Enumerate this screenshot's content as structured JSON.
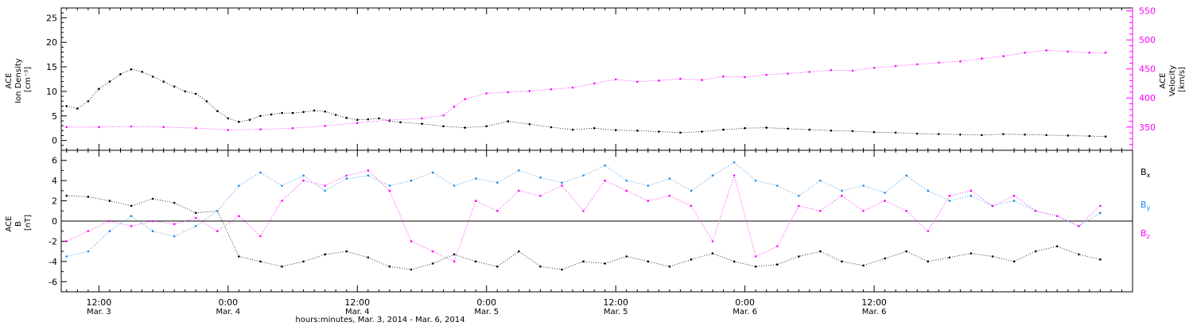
{
  "chart_data": [
    {
      "type": "scatter",
      "panel": "ion-density-velocity",
      "ylabel_lines": [
        "ACE",
        "Ion Density",
        "[cm⁻³]"
      ],
      "ylim": [
        -2,
        27
      ],
      "yticks": [
        0,
        5,
        10,
        15,
        20,
        25
      ],
      "y2label_lines": [
        "ACE",
        "Velocity",
        "[km/s]"
      ],
      "y2lim": [
        310,
        555
      ],
      "y2ticks": [
        350,
        400,
        450,
        500,
        550
      ],
      "series": [
        {
          "axis": "left",
          "color": "#000000",
          "points": [
            [
              9.0,
              7.0
            ],
            [
              10.0,
              6.5
            ],
            [
              11.0,
              8.0
            ],
            [
              12.0,
              10.5
            ],
            [
              13.0,
              12.0
            ],
            [
              14.0,
              13.5
            ],
            [
              15.0,
              14.5
            ],
            [
              16.0,
              14.0
            ],
            [
              17.0,
              13.0
            ],
            [
              18.0,
              12.0
            ],
            [
              19.0,
              11.0
            ],
            [
              20.0,
              10.0
            ],
            [
              21.0,
              9.5
            ],
            [
              22.0,
              8.0
            ],
            [
              23.0,
              6.0
            ],
            [
              24.0,
              4.5
            ],
            [
              25.0,
              3.8
            ],
            [
              26.0,
              4.2
            ],
            [
              27.0,
              5.0
            ],
            [
              28.0,
              5.3
            ],
            [
              29.0,
              5.6
            ],
            [
              30.0,
              5.6
            ],
            [
              31.0,
              5.8
            ],
            [
              32.0,
              6.1
            ],
            [
              33.0,
              5.9
            ],
            [
              34.0,
              5.2
            ],
            [
              35.0,
              4.6
            ],
            [
              36.0,
              4.2
            ],
            [
              37.0,
              4.3
            ],
            [
              38.0,
              4.5
            ],
            [
              39.0,
              4.0
            ],
            [
              40.0,
              3.7
            ],
            [
              42.0,
              3.4
            ],
            [
              44.0,
              2.9
            ],
            [
              46.0,
              2.6
            ],
            [
              48.0,
              2.9
            ],
            [
              50.0,
              3.9
            ],
            [
              52.0,
              3.3
            ],
            [
              54.0,
              2.7
            ],
            [
              56.0,
              2.2
            ],
            [
              58.0,
              2.5
            ],
            [
              60.0,
              2.1
            ],
            [
              62.0,
              2.0
            ],
            [
              64.0,
              1.8
            ],
            [
              66.0,
              1.6
            ],
            [
              68.0,
              1.8
            ],
            [
              70.0,
              2.2
            ],
            [
              72.0,
              2.5
            ],
            [
              74.0,
              2.6
            ],
            [
              76.0,
              2.4
            ],
            [
              78.0,
              2.2
            ],
            [
              80.0,
              2.0
            ],
            [
              82.0,
              1.9
            ],
            [
              84.0,
              1.7
            ],
            [
              86.0,
              1.6
            ],
            [
              88.0,
              1.4
            ],
            [
              90.0,
              1.3
            ],
            [
              92.0,
              1.2
            ],
            [
              94.0,
              1.1
            ],
            [
              96.0,
              1.3
            ],
            [
              98.0,
              1.2
            ],
            [
              100.0,
              1.1
            ],
            [
              102.0,
              1.0
            ],
            [
              104.0,
              0.9
            ],
            [
              105.5,
              0.8
            ]
          ]
        },
        {
          "axis": "right",
          "color": "#ff00ff",
          "points": [
            [
              9.0,
              350
            ],
            [
              12.0,
              350
            ],
            [
              15.0,
              351
            ],
            [
              18.0,
              350
            ],
            [
              21.0,
              348
            ],
            [
              24.0,
              345
            ],
            [
              27.0,
              346
            ],
            [
              30.0,
              348
            ],
            [
              33.0,
              352
            ],
            [
              36.0,
              357
            ],
            [
              39.0,
              362
            ],
            [
              42.0,
              365
            ],
            [
              44.0,
              370
            ],
            [
              45.0,
              385
            ],
            [
              46.0,
              398
            ],
            [
              48.0,
              408
            ],
            [
              50.0,
              410
            ],
            [
              52.0,
              412
            ],
            [
              54.0,
              415
            ],
            [
              56.0,
              418
            ],
            [
              58.0,
              425
            ],
            [
              60.0,
              432
            ],
            [
              62.0,
              428
            ],
            [
              64.0,
              430
            ],
            [
              66.0,
              433
            ],
            [
              68.0,
              431
            ],
            [
              70.0,
              437
            ],
            [
              72.0,
              436
            ],
            [
              74.0,
              440
            ],
            [
              76.0,
              442
            ],
            [
              78.0,
              445
            ],
            [
              80.0,
              448
            ],
            [
              82.0,
              447
            ],
            [
              84.0,
              452
            ],
            [
              86.0,
              455
            ],
            [
              88.0,
              458
            ],
            [
              90.0,
              461
            ],
            [
              92.0,
              463
            ],
            [
              94.0,
              468
            ],
            [
              96.0,
              472
            ],
            [
              98.0,
              478
            ],
            [
              100.0,
              482
            ],
            [
              102.0,
              480
            ],
            [
              104.0,
              478
            ],
            [
              105.5,
              478
            ]
          ]
        }
      ]
    },
    {
      "type": "scatter",
      "panel": "magnetic-field",
      "ylabel_lines": [
        "ACE",
        "B",
        "[nT]"
      ],
      "ylim": [
        -7,
        7
      ],
      "yticks": [
        -6,
        -4,
        -2,
        0,
        2,
        4,
        6
      ],
      "legend": [
        {
          "label": "B",
          "sub": "x",
          "color": "#000000"
        },
        {
          "label": "B",
          "sub": "y",
          "color": "#1e88e5"
        },
        {
          "label": "B",
          "sub": "z",
          "color": "#ff00ff"
        }
      ],
      "series": [
        {
          "name": "Bx",
          "color": "#000000",
          "points": [
            [
              9,
              2.5
            ],
            [
              11,
              2.4
            ],
            [
              13,
              2.0
            ],
            [
              15,
              1.5
            ],
            [
              17,
              2.2
            ],
            [
              19,
              1.8
            ],
            [
              21,
              0.8
            ],
            [
              23,
              1.0
            ],
            [
              25,
              -3.5
            ],
            [
              27,
              -4.0
            ],
            [
              29,
              -4.5
            ],
            [
              31,
              -4.0
            ],
            [
              33,
              -3.3
            ],
            [
              35,
              -3.0
            ],
            [
              37,
              -3.6
            ],
            [
              39,
              -4.5
            ],
            [
              41,
              -4.8
            ],
            [
              43,
              -4.2
            ],
            [
              45,
              -3.3
            ],
            [
              47,
              -4.0
            ],
            [
              49,
              -4.5
            ],
            [
              51,
              -3.0
            ],
            [
              53,
              -4.5
            ],
            [
              55,
              -4.8
            ],
            [
              57,
              -4.0
            ],
            [
              59,
              -4.2
            ],
            [
              61,
              -3.5
            ],
            [
              63,
              -4.0
            ],
            [
              65,
              -4.5
            ],
            [
              67,
              -3.8
            ],
            [
              69,
              -3.2
            ],
            [
              71,
              -4.0
            ],
            [
              73,
              -4.5
            ],
            [
              75,
              -4.3
            ],
            [
              77,
              -3.5
            ],
            [
              79,
              -3.0
            ],
            [
              81,
              -4.0
            ],
            [
              83,
              -4.4
            ],
            [
              85,
              -3.7
            ],
            [
              87,
              -3.0
            ],
            [
              89,
              -4.0
            ],
            [
              91,
              -3.6
            ],
            [
              93,
              -3.2
            ],
            [
              95,
              -3.5
            ],
            [
              97,
              -4.0
            ],
            [
              99,
              -3.0
            ],
            [
              101,
              -2.5
            ],
            [
              103,
              -3.3
            ],
            [
              105,
              -3.8
            ]
          ]
        },
        {
          "name": "By",
          "color": "#1e88e5",
          "points": [
            [
              9,
              -3.5
            ],
            [
              11,
              -3.0
            ],
            [
              13,
              -1.0
            ],
            [
              15,
              0.5
            ],
            [
              17,
              -1.0
            ],
            [
              19,
              -1.5
            ],
            [
              21,
              -0.5
            ],
            [
              23,
              1.0
            ],
            [
              25,
              3.5
            ],
            [
              27,
              4.8
            ],
            [
              29,
              3.5
            ],
            [
              31,
              4.5
            ],
            [
              33,
              3.0
            ],
            [
              35,
              4.2
            ],
            [
              37,
              4.5
            ],
            [
              39,
              3.5
            ],
            [
              41,
              4.0
            ],
            [
              43,
              4.8
            ],
            [
              45,
              3.5
            ],
            [
              47,
              4.2
            ],
            [
              49,
              3.8
            ],
            [
              51,
              5.0
            ],
            [
              53,
              4.3
            ],
            [
              55,
              3.8
            ],
            [
              57,
              4.5
            ],
            [
              59,
              5.5
            ],
            [
              61,
              4.0
            ],
            [
              63,
              3.5
            ],
            [
              65,
              4.2
            ],
            [
              67,
              3.0
            ],
            [
              69,
              4.5
            ],
            [
              71,
              5.8
            ],
            [
              73,
              4.0
            ],
            [
              75,
              3.5
            ],
            [
              77,
              2.5
            ],
            [
              79,
              4.0
            ],
            [
              81,
              3.0
            ],
            [
              83,
              3.5
            ],
            [
              85,
              2.8
            ],
            [
              87,
              4.5
            ],
            [
              89,
              3.0
            ],
            [
              91,
              2.0
            ],
            [
              93,
              2.5
            ],
            [
              95,
              1.5
            ],
            [
              97,
              2.0
            ],
            [
              99,
              1.0
            ],
            [
              101,
              0.5
            ],
            [
              103,
              -0.5
            ],
            [
              105,
              0.8
            ]
          ]
        },
        {
          "name": "Bz",
          "color": "#ff00ff",
          "points": [
            [
              9,
              -2.0
            ],
            [
              11,
              -1.0
            ],
            [
              13,
              0.0
            ],
            [
              15,
              -0.5
            ],
            [
              17,
              0.0
            ],
            [
              19,
              -0.3
            ],
            [
              21,
              0.3
            ],
            [
              23,
              -1.0
            ],
            [
              25,
              0.5
            ],
            [
              27,
              -1.5
            ],
            [
              29,
              2.0
            ],
            [
              31,
              4.0
            ],
            [
              33,
              3.5
            ],
            [
              35,
              4.5
            ],
            [
              37,
              5.0
            ],
            [
              39,
              3.0
            ],
            [
              41,
              -2.0
            ],
            [
              43,
              -3.0
            ],
            [
              45,
              -4.0
            ],
            [
              47,
              2.0
            ],
            [
              49,
              1.0
            ],
            [
              51,
              3.0
            ],
            [
              53,
              2.5
            ],
            [
              55,
              3.5
            ],
            [
              57,
              1.0
            ],
            [
              59,
              4.0
            ],
            [
              61,
              3.0
            ],
            [
              63,
              2.0
            ],
            [
              65,
              2.5
            ],
            [
              67,
              1.5
            ],
            [
              69,
              -2.0
            ],
            [
              71,
              4.5
            ],
            [
              73,
              -3.5
            ],
            [
              75,
              -2.5
            ],
            [
              77,
              1.5
            ],
            [
              79,
              1.0
            ],
            [
              81,
              2.5
            ],
            [
              83,
              1.0
            ],
            [
              85,
              2.0
            ],
            [
              87,
              1.0
            ],
            [
              89,
              -1.0
            ],
            [
              91,
              2.5
            ],
            [
              93,
              3.0
            ],
            [
              95,
              1.5
            ],
            [
              97,
              2.5
            ],
            [
              99,
              1.0
            ],
            [
              101,
              0.5
            ],
            [
              103,
              -0.5
            ],
            [
              105,
              1.5
            ]
          ]
        }
      ]
    }
  ],
  "x_axis": {
    "ticks": [
      {
        "hour": 12,
        "time": "12:00",
        "date": "Mar. 3"
      },
      {
        "hour": 24,
        "time": "0:00",
        "date": "Mar. 4"
      },
      {
        "hour": 36,
        "time": "12:00",
        "date": "Mar. 4"
      },
      {
        "hour": 48,
        "time": "0:00",
        "date": "Mar. 5"
      },
      {
        "hour": 60,
        "time": "12:00",
        "date": "Mar. 5"
      },
      {
        "hour": 72,
        "time": "0:00",
        "date": "Mar. 6"
      },
      {
        "hour": 84,
        "time": "12:00",
        "date": "Mar. 6"
      }
    ],
    "xlim": [
      8.5,
      108.0
    ],
    "xlabel": "hours:minutes, Mar. 3, 2014 - Mar. 6, 2014"
  }
}
